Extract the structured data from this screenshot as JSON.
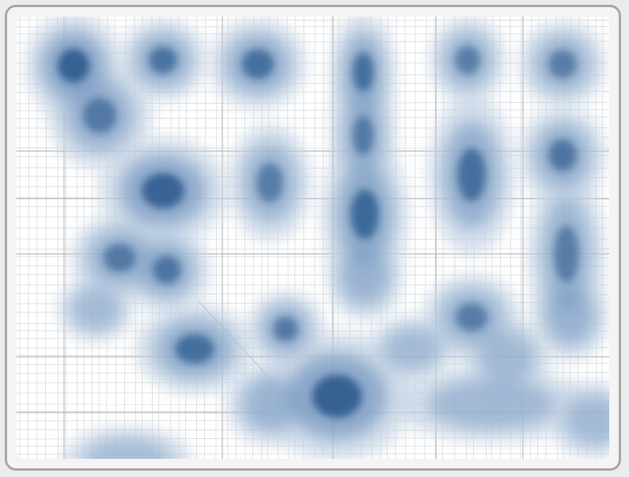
{
  "map": {
    "basemap": "street-grid",
    "layer": "density-heatmap",
    "palette": {
      "background": "#ffffff",
      "street_light": "#d6d6d6",
      "street_major": "#b9b9b9",
      "heat_low": "#c6d4e4",
      "heat_mid": "#6f93bd",
      "heat_high": "#1f4f86"
    }
  }
}
